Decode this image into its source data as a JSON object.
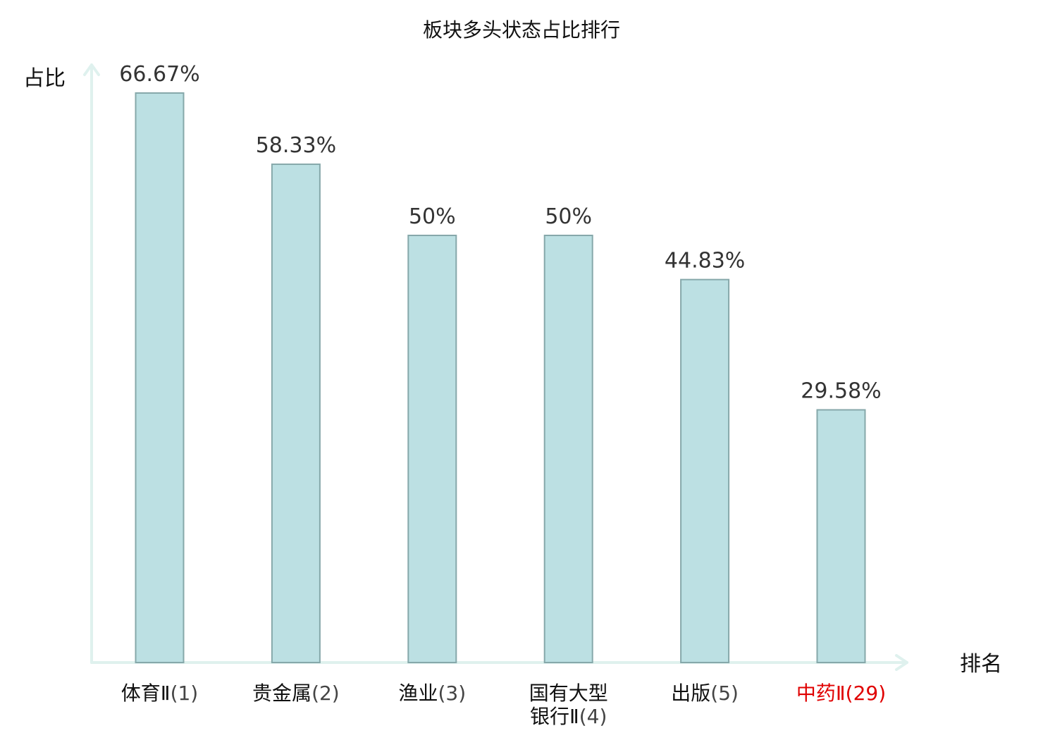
{
  "chart_data": {
    "type": "bar",
    "title": "板块多头状态占比排行",
    "ylabel": "占比",
    "xlabel": "排名",
    "ylim": [
      0,
      70
    ],
    "grid": false,
    "legend": "none",
    "categories": [
      {
        "lines": [
          {
            "name": "体育Ⅱ",
            "rank": "(1)"
          }
        ],
        "highlight": false
      },
      {
        "lines": [
          {
            "name": "贵金属",
            "rank": "(2)"
          }
        ],
        "highlight": false
      },
      {
        "lines": [
          {
            "name": "渔业",
            "rank": "(3)"
          }
        ],
        "highlight": false
      },
      {
        "lines": [
          {
            "name": "国有大型",
            "rank": ""
          },
          {
            "name": "银行Ⅱ",
            "rank": "(4)"
          }
        ],
        "highlight": false
      },
      {
        "lines": [
          {
            "name": "出版",
            "rank": "(5)"
          }
        ],
        "highlight": false
      },
      {
        "lines": [
          {
            "name": "中药Ⅱ",
            "rank": "(29)"
          }
        ],
        "highlight": true
      }
    ],
    "values": [
      66.67,
      58.33,
      50,
      50,
      44.83,
      29.58
    ],
    "value_labels": [
      "66.67%",
      "58.33%",
      "50%",
      "50%",
      "44.83%",
      "29.58%"
    ],
    "colors": {
      "bar_fill": "#bce0e3",
      "bar_stroke": "#86a8aa",
      "axis": "#dff1ee",
      "highlight": "#e00000"
    }
  }
}
